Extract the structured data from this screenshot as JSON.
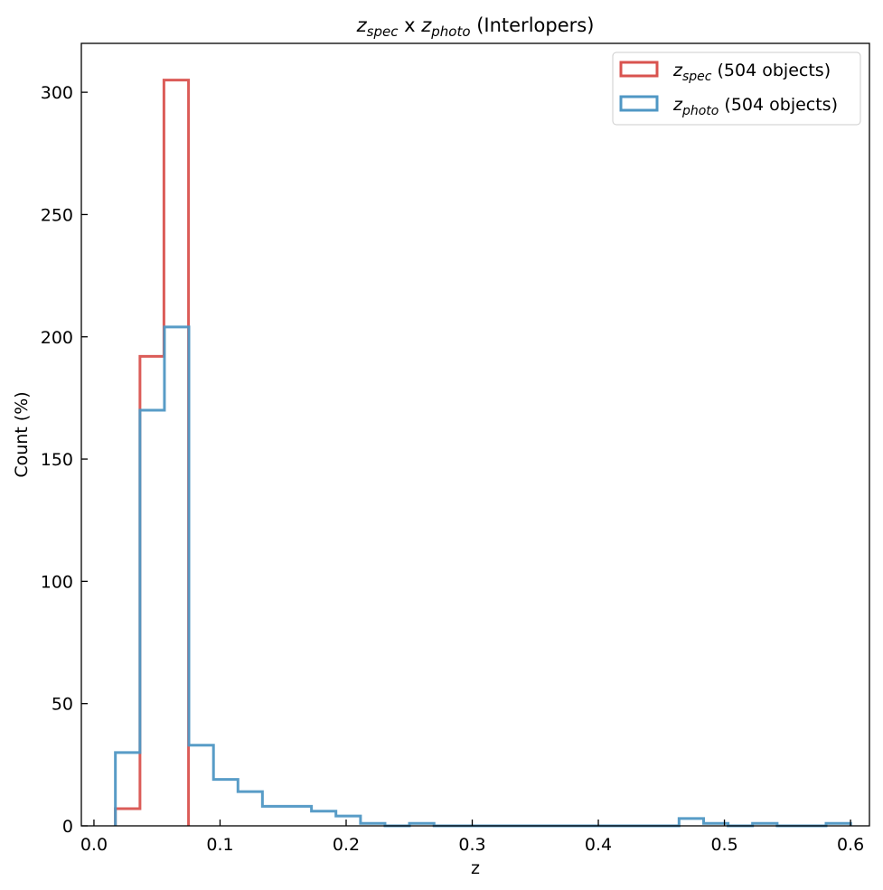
{
  "chart_data": {
    "type": "histogram",
    "title": {
      "z1": "z",
      "s1": "spec",
      "mid": " x ",
      "z2": "z",
      "s2": "photo",
      "rest": " (Interlopers)"
    },
    "xlabel": "z",
    "ylabel": "Count (%)",
    "xlim": [
      -0.01,
      0.615
    ],
    "ylim": [
      0,
      320
    ],
    "xticks": [
      0.0,
      0.1,
      0.2,
      0.3,
      0.4,
      0.5,
      0.6
    ],
    "xtick_labels": [
      "0.0",
      "0.1",
      "0.2",
      "0.3",
      "0.4",
      "0.5",
      "0.6"
    ],
    "yticks": [
      0,
      50,
      100,
      150,
      200,
      250,
      300
    ],
    "ytick_labels": [
      "0",
      "50",
      "100",
      "150",
      "200",
      "250",
      "300"
    ],
    "grid": false,
    "legend_position": "top-right",
    "series": [
      {
        "z": "z",
        "sub": "spec",
        "suffix": " (504 objects)",
        "color": "#d9534f",
        "bin_edges": [
          0.017,
          0.0365,
          0.0555,
          0.075
        ],
        "counts": [
          7,
          192,
          305
        ]
      },
      {
        "z": "z",
        "sub": "photo",
        "suffix": " (504 objects)",
        "color": "#4f97c4",
        "bin_edges": [
          0.017,
          0.0365,
          0.0559,
          0.0753,
          0.0948,
          0.1142,
          0.1336,
          0.1531,
          0.1725,
          0.1919,
          0.2114,
          0.2308,
          0.2502,
          0.2697,
          0.2891,
          0.3085,
          0.328,
          0.3474,
          0.3669,
          0.3863,
          0.4057,
          0.4252,
          0.4446,
          0.464,
          0.4835,
          0.5029,
          0.5223,
          0.5418,
          0.5612,
          0.5806,
          0.6001
        ],
        "counts": [
          30,
          170,
          204,
          33,
          19,
          14,
          8,
          8,
          6,
          4,
          1,
          0,
          1,
          0,
          0,
          0,
          0,
          0,
          0,
          0,
          0,
          0,
          0,
          3,
          1,
          0,
          1,
          0,
          0,
          1
        ]
      }
    ]
  }
}
